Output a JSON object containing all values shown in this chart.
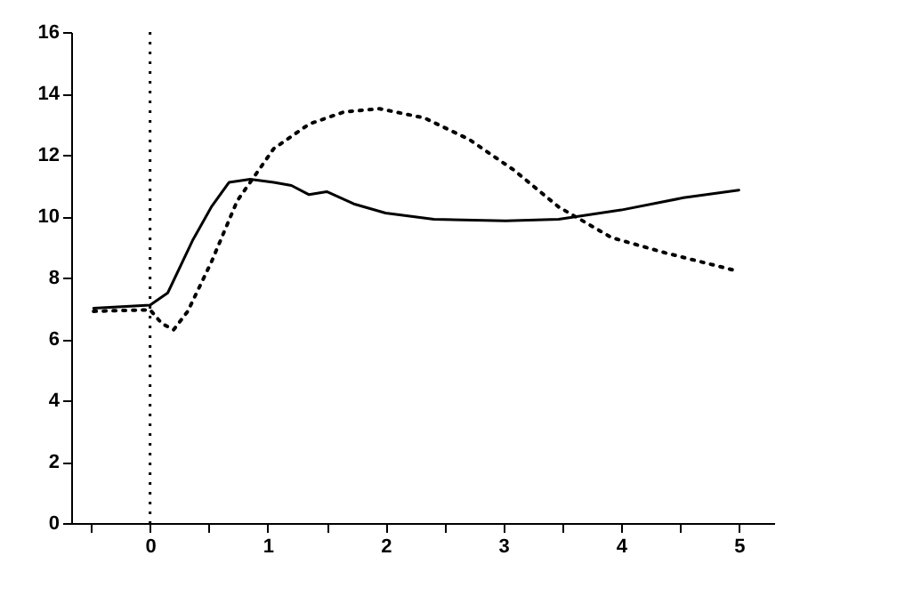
{
  "chart_data": {
    "type": "line",
    "xlim": [
      -0.67,
      5.3
    ],
    "ylim": [
      0,
      16
    ],
    "xticks": [
      {
        "value": -0.5,
        "label": null
      },
      0,
      {
        "value": 0.5,
        "label": null
      },
      1,
      {
        "value": 1.5,
        "label": null
      },
      2,
      {
        "value": 2.5,
        "label": null
      },
      3,
      {
        "value": 3.5,
        "label": null
      },
      4,
      {
        "value": 4.5,
        "label": null
      },
      5
    ],
    "yticks": [
      0,
      2,
      4,
      6,
      8,
      10,
      12,
      14,
      16
    ],
    "grid": false,
    "marker": "none",
    "series": [
      {
        "color": "#000000",
        "line_style": "solid",
        "x": [
          -0.48,
          0,
          0.15,
          0.36,
          0.52,
          0.67,
          0.85,
          1.05,
          1.2,
          1.35,
          1.5,
          1.73,
          2.0,
          2.41,
          3.02,
          3.47,
          4.0,
          4.53,
          5.0
        ],
        "values": [
          7.0,
          7.1,
          7.5,
          9.2,
          10.3,
          11.1,
          11.2,
          11.1,
          11.0,
          10.7,
          10.8,
          10.4,
          10.1,
          9.9,
          9.85,
          9.9,
          10.2,
          10.6,
          10.85
        ]
      },
      {
        "color": "#000000",
        "line_style": "dotted",
        "x": [
          -0.48,
          0,
          0.1,
          0.2,
          0.32,
          0.52,
          0.74,
          1.05,
          1.35,
          1.65,
          1.95,
          2.33,
          2.71,
          3.09,
          3.47,
          3.92,
          4.38,
          5.0
        ],
        "values": [
          6.9,
          6.95,
          6.5,
          6.3,
          6.9,
          8.5,
          10.5,
          12.2,
          13.0,
          13.4,
          13.5,
          13.2,
          12.5,
          11.5,
          10.3,
          9.3,
          8.8,
          8.2
        ]
      }
    ],
    "ref_lines": [
      {
        "axis": "x",
        "value": 0,
        "label": null,
        "line_style": "dotted",
        "color": "#000000"
      }
    ]
  }
}
